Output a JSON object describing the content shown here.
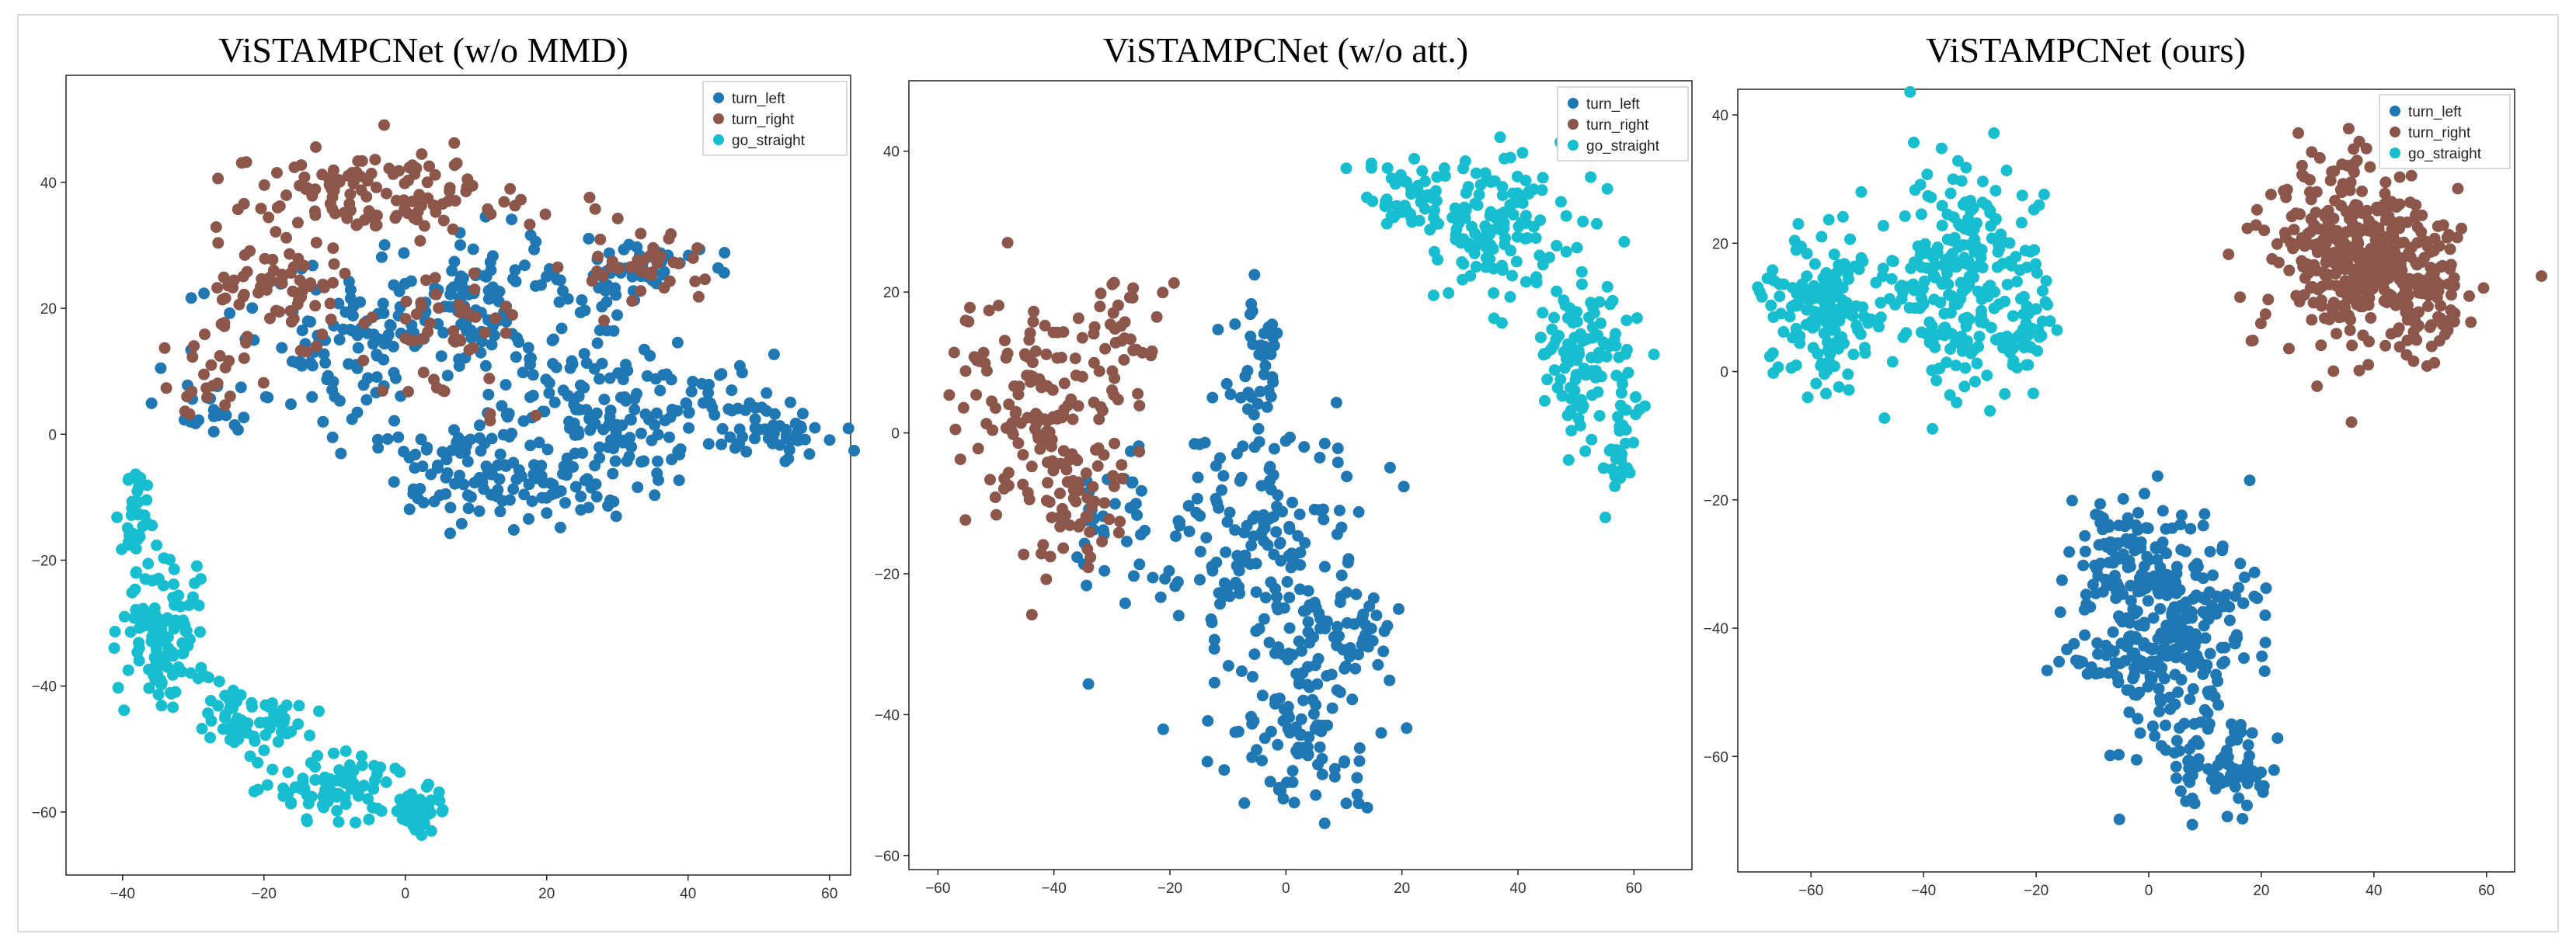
{
  "chart_data": [
    {
      "type": "scatter",
      "title": "ViSTAMPCNet (w/o MMD)",
      "xlabel": "",
      "ylabel": "",
      "xlim": [
        -48,
        63
      ],
      "ylim": [
        -70,
        57
      ],
      "xticks": [
        -40,
        -20,
        0,
        20,
        40,
        60
      ],
      "yticks": [
        -60,
        -40,
        -20,
        0,
        20,
        40
      ],
      "legend": [
        "turn_left",
        "turn_right",
        "go_straight"
      ],
      "legend_position": "top-right",
      "series": [
        {
          "name": "turn_left",
          "color": "#1f77b4",
          "regions": [
            {
              "cx": 10,
              "cy": 20,
              "rx": 22,
              "ry": 13,
              "n": 170
            },
            {
              "cx": 35,
              "cy": 3,
              "rx": 20,
              "ry": 9,
              "n": 140
            },
            {
              "cx": 53,
              "cy": 1,
              "rx": 7,
              "ry": 4,
              "n": 40
            },
            {
              "cx": 16,
              "cy": -9,
              "rx": 18,
              "ry": 6,
              "n": 90
            },
            {
              "cx": 33,
              "cy": 26,
              "rx": 9,
              "ry": 5,
              "n": 40
            },
            {
              "cx": 8,
              "cy": -2,
              "rx": 10,
              "ry": 6,
              "n": 40
            },
            {
              "cx": -10,
              "cy": 13,
              "rx": 14,
              "ry": 13,
              "n": 70
            },
            {
              "cx": -28,
              "cy": 5,
              "rx": 8,
              "ry": 6,
              "n": 25
            }
          ]
        },
        {
          "name": "turn_right",
          "color": "#8c564b",
          "regions": [
            {
              "cx": -3,
              "cy": 38,
              "rx": 22,
              "ry": 7,
              "n": 120
            },
            {
              "cx": -18,
              "cy": 22,
              "rx": 10,
              "ry": 10,
              "n": 70
            },
            {
              "cx": 5,
              "cy": 15,
              "rx": 12,
              "ry": 12,
              "n": 50
            },
            {
              "cx": 34,
              "cy": 27,
              "rx": 9,
              "ry": 6,
              "n": 40
            },
            {
              "cx": -28,
              "cy": 8,
              "rx": 6,
              "ry": 6,
              "n": 20
            }
          ]
        },
        {
          "name": "go_straight",
          "color": "#17becf",
          "regions": [
            {
              "cx": -38,
              "cy": -14,
              "rx": 3,
              "ry": 10,
              "n": 35
            },
            {
              "cx": -34,
              "cy": -32,
              "rx": 6,
              "ry": 12,
              "n": 110
            },
            {
              "cx": -22,
              "cy": -45,
              "rx": 8,
              "ry": 6,
              "n": 60
            },
            {
              "cx": -10,
              "cy": -56,
              "rx": 10,
              "ry": 5,
              "n": 80
            },
            {
              "cx": 2,
              "cy": -60,
              "rx": 4,
              "ry": 4,
              "n": 40
            }
          ]
        }
      ]
    },
    {
      "type": "scatter",
      "title": "ViSTAMPCNet (w/o att.)",
      "xlabel": "",
      "ylabel": "",
      "xlim": [
        -65,
        70
      ],
      "ylim": [
        -62,
        50
      ],
      "xticks": [
        -60,
        -40,
        -20,
        0,
        20,
        40,
        60
      ],
      "yticks": [
        -60,
        -40,
        -20,
        0,
        20,
        40
      ],
      "legend": [
        "turn_left",
        "turn_right",
        "go_straight"
      ],
      "legend_position": "top-right",
      "series": [
        {
          "name": "turn_left",
          "color": "#1f77b4",
          "regions": [
            {
              "cx": -5,
              "cy": -15,
              "rx": 18,
              "ry": 18,
              "n": 160
            },
            {
              "cx": 2,
              "cy": -40,
              "rx": 14,
              "ry": 16,
              "n": 120
            },
            {
              "cx": 12,
              "cy": -28,
              "rx": 6,
              "ry": 6,
              "n": 40
            },
            {
              "cx": -5,
              "cy": 10,
              "rx": 5,
              "ry": 10,
              "n": 40
            },
            {
              "cx": -30,
              "cy": -12,
              "rx": 10,
              "ry": 8,
              "n": 30
            }
          ]
        },
        {
          "name": "turn_right",
          "color": "#8c564b",
          "regions": [
            {
              "cx": -45,
              "cy": 5,
              "rx": 13,
              "ry": 14,
              "n": 120
            },
            {
              "cx": -38,
              "cy": -10,
              "rx": 10,
              "ry": 10,
              "n": 60
            },
            {
              "cx": -28,
              "cy": 12,
              "rx": 8,
              "ry": 10,
              "n": 40
            }
          ]
        },
        {
          "name": "go_straight",
          "color": "#17becf",
          "regions": [
            {
              "cx": 35,
              "cy": 30,
              "rx": 14,
              "ry": 10,
              "n": 140
            },
            {
              "cx": 52,
              "cy": 10,
              "rx": 9,
              "ry": 12,
              "n": 120
            },
            {
              "cx": 20,
              "cy": 33,
              "rx": 8,
              "ry": 6,
              "n": 40
            },
            {
              "cx": 58,
              "cy": -3,
              "rx": 3,
              "ry": 5,
              "n": 20
            }
          ]
        }
      ]
    },
    {
      "type": "scatter",
      "title": "ViSTAMPCNet (ours)",
      "xlabel": "",
      "ylabel": "",
      "xlim": [
        -73,
        65
      ],
      "ylim": [
        -78,
        44
      ],
      "xticks": [
        -60,
        -40,
        -20,
        0,
        20,
        40,
        60
      ],
      "yticks": [
        -60,
        -40,
        -20,
        0,
        20,
        40
      ],
      "legend": [
        "turn_left",
        "turn_right",
        "go_straight"
      ],
      "legend_position": "top-right",
      "series": [
        {
          "name": "turn_left",
          "color": "#1f77b4",
          "regions": [
            {
              "cx": 3,
              "cy": -40,
              "rx": 16,
              "ry": 18,
              "n": 320
            },
            {
              "cx": 12,
              "cy": -62,
              "rx": 10,
              "ry": 7,
              "n": 80
            },
            {
              "cx": -5,
              "cy": -28,
              "rx": 8,
              "ry": 8,
              "n": 50
            }
          ]
        },
        {
          "name": "turn_right",
          "color": "#8c564b",
          "regions": [
            {
              "cx": 37,
              "cy": 18,
              "rx": 16,
              "ry": 15,
              "n": 380
            },
            {
              "cx": 50,
              "cy": 12,
              "rx": 6,
              "ry": 10,
              "n": 60
            }
          ]
        },
        {
          "name": "go_straight",
          "color": "#17becf",
          "regions": [
            {
              "cx": -58,
              "cy": 10,
              "rx": 10,
              "ry": 11,
              "n": 160
            },
            {
              "cx": -33,
              "cy": 15,
              "rx": 14,
              "ry": 18,
              "n": 240
            },
            {
              "cx": -22,
              "cy": 5,
              "rx": 5,
              "ry": 5,
              "n": 30
            }
          ]
        }
      ]
    }
  ]
}
